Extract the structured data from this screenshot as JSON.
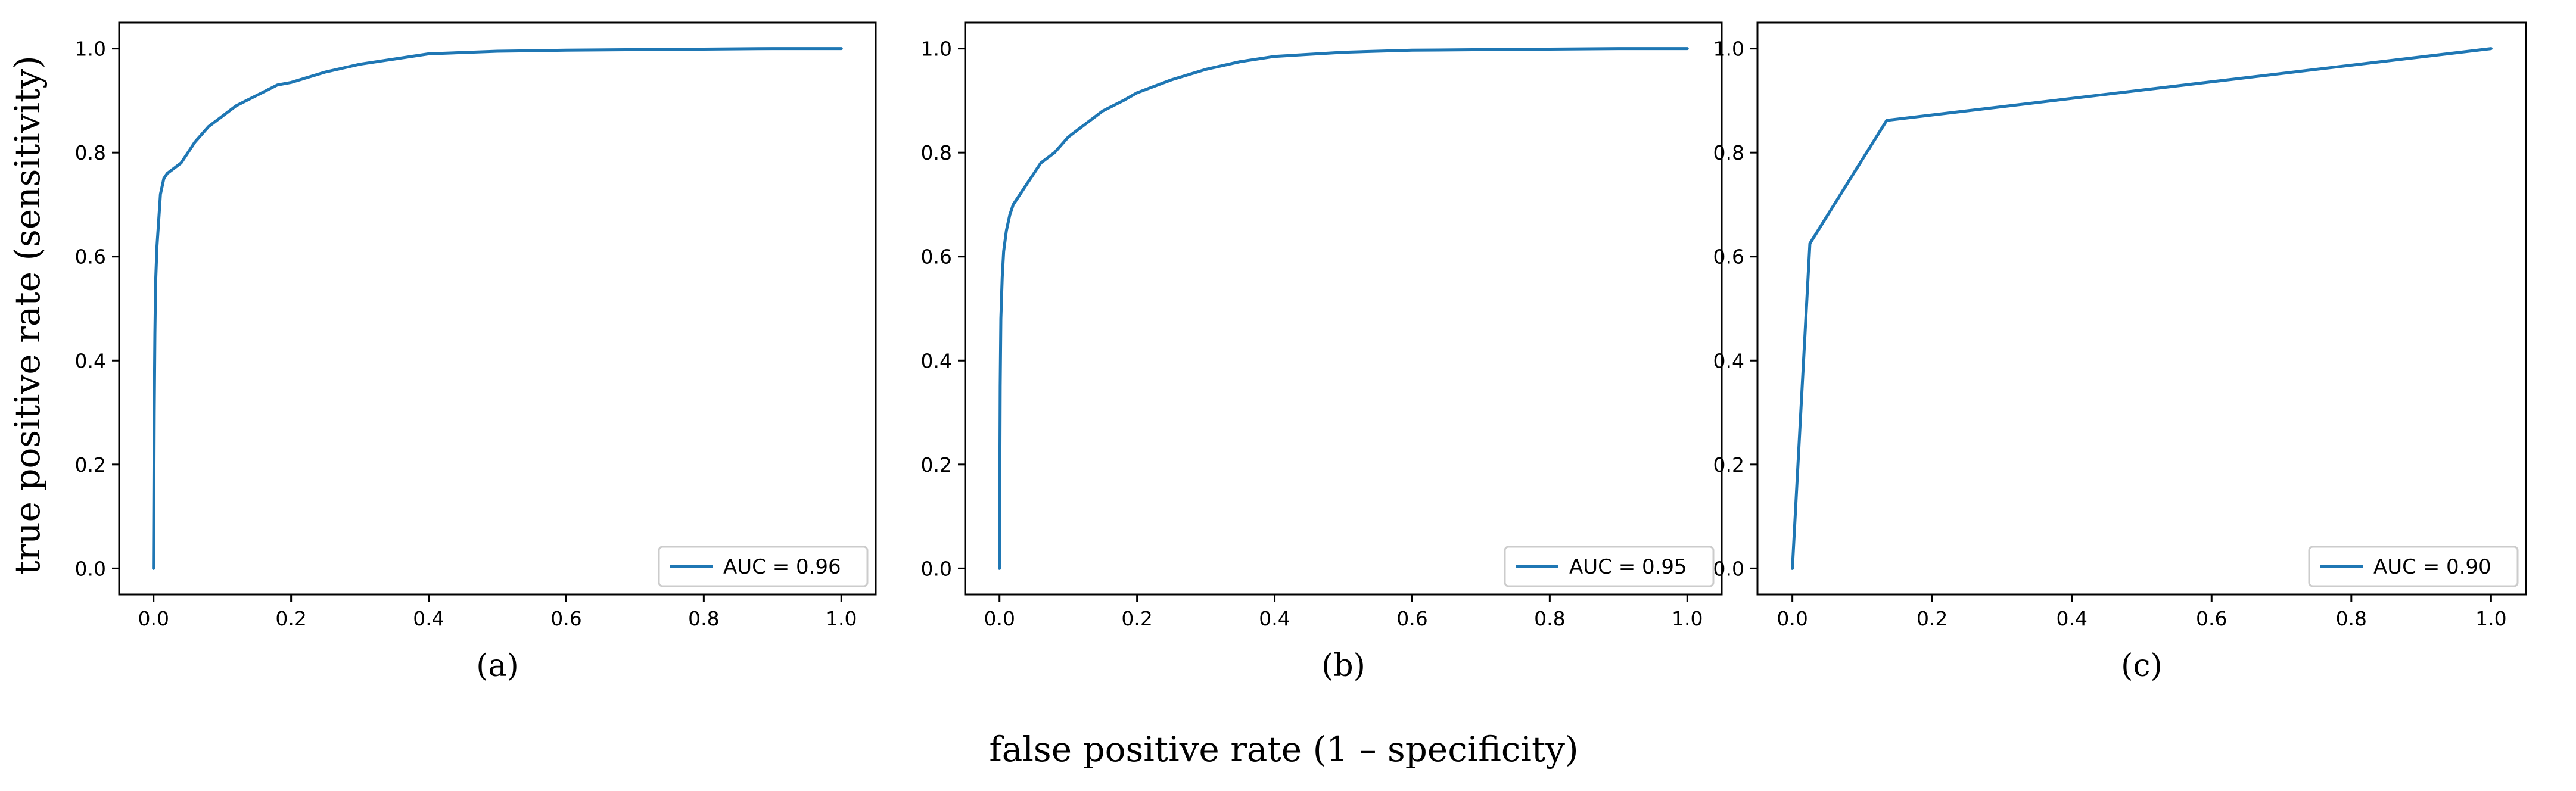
{
  "figure": {
    "ylabel": "true positive rate (sensitivity)",
    "xlabel": "false positive rate (1 – specificity)"
  },
  "chart_data": [
    {
      "type": "line",
      "panel_label": "(a)",
      "legend": {
        "entries": [
          "AUC = 0.96"
        ],
        "placement": "lower-right"
      },
      "xlim": [
        -0.05,
        1.05
      ],
      "ylim": [
        -0.05,
        1.05
      ],
      "xticks": [
        "0.0",
        "0.2",
        "0.4",
        "0.6",
        "0.8",
        "1.0"
      ],
      "yticks": [
        "0.0",
        "0.2",
        "0.4",
        "0.6",
        "0.8",
        "1.0"
      ],
      "series": [
        {
          "name": "AUC = 0.96",
          "color": "#1f77b4",
          "x": [
            0.0,
            0.001,
            0.002,
            0.003,
            0.005,
            0.008,
            0.01,
            0.015,
            0.02,
            0.03,
            0.04,
            0.05,
            0.06,
            0.08,
            0.1,
            0.12,
            0.15,
            0.18,
            0.2,
            0.25,
            0.3,
            0.35,
            0.4,
            0.5,
            0.6,
            0.7,
            0.8,
            0.9,
            1.0
          ],
          "y": [
            0.0,
            0.3,
            0.45,
            0.55,
            0.62,
            0.68,
            0.72,
            0.75,
            0.76,
            0.77,
            0.78,
            0.8,
            0.82,
            0.85,
            0.87,
            0.89,
            0.91,
            0.93,
            0.935,
            0.955,
            0.97,
            0.98,
            0.99,
            0.995,
            0.997,
            0.998,
            0.999,
            1.0,
            1.0
          ]
        }
      ]
    },
    {
      "type": "line",
      "panel_label": "(b)",
      "legend": {
        "entries": [
          "AUC = 0.95"
        ],
        "placement": "lower-right"
      },
      "xlim": [
        -0.05,
        1.05
      ],
      "ylim": [
        -0.05,
        1.05
      ],
      "xticks": [
        "0.0",
        "0.2",
        "0.4",
        "0.6",
        "0.8",
        "1.0"
      ],
      "yticks": [
        "0.0",
        "0.2",
        "0.4",
        "0.6",
        "0.8",
        "1.0"
      ],
      "series": [
        {
          "name": "AUC = 0.95",
          "color": "#1f77b4",
          "x": [
            0.0,
            0.001,
            0.002,
            0.004,
            0.006,
            0.01,
            0.015,
            0.02,
            0.03,
            0.04,
            0.05,
            0.06,
            0.08,
            0.1,
            0.12,
            0.15,
            0.18,
            0.2,
            0.25,
            0.3,
            0.35,
            0.4,
            0.5,
            0.6,
            0.7,
            0.8,
            0.9,
            1.0
          ],
          "y": [
            0.0,
            0.35,
            0.48,
            0.56,
            0.61,
            0.65,
            0.68,
            0.7,
            0.72,
            0.74,
            0.76,
            0.78,
            0.8,
            0.83,
            0.85,
            0.88,
            0.9,
            0.915,
            0.94,
            0.96,
            0.975,
            0.985,
            0.993,
            0.997,
            0.998,
            0.999,
            1.0,
            1.0
          ]
        }
      ]
    },
    {
      "type": "line",
      "panel_label": "(c)",
      "legend": {
        "entries": [
          "AUC = 0.90"
        ],
        "placement": "lower-right"
      },
      "xlim": [
        -0.05,
        1.05
      ],
      "ylim": [
        -0.05,
        1.05
      ],
      "xticks": [
        "0.0",
        "0.2",
        "0.4",
        "0.6",
        "0.8",
        "1.0"
      ],
      "yticks": [
        "0.0",
        "0.2",
        "0.4",
        "0.6",
        "0.8",
        "1.0"
      ],
      "series": [
        {
          "name": "AUC = 0.90",
          "color": "#1f77b4",
          "x": [
            0.0,
            0.025,
            0.135,
            1.0
          ],
          "y": [
            0.0,
            0.625,
            0.862,
            1.0
          ]
        }
      ]
    }
  ]
}
